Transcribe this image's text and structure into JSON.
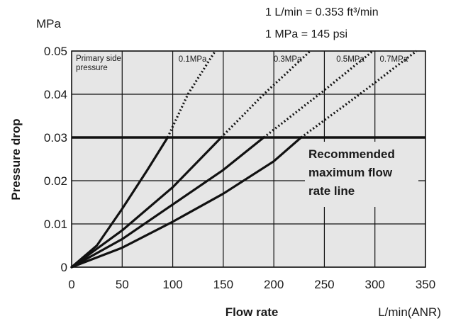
{
  "chart_data": {
    "type": "line",
    "xlabel": "Flow rate",
    "ylabel": "Pressure drop",
    "x_unit": "L/min(ANR)",
    "y_unit": "MPa",
    "xlim": [
      0,
      350
    ],
    "ylim": [
      0,
      0.05
    ],
    "x_ticks": [
      "0",
      "50",
      "100",
      "150",
      "200",
      "250",
      "300",
      "350"
    ],
    "y_ticks": [
      "0",
      "0.01",
      "0.02",
      "0.03",
      "0.04",
      "0.05"
    ],
    "grid": true,
    "legend_title": "Primary side pressure",
    "conversion_notes": [
      "1 L/min = 0.353 ft³/min",
      "1 MPa = 145 psi"
    ],
    "recommended_line": {
      "y": 0.03,
      "label_lines": [
        "Recommended",
        "maximum flow",
        "rate line"
      ]
    },
    "series": [
      {
        "name": "0.1MPa",
        "solid": [
          [
            0,
            0
          ],
          [
            25,
            0.005
          ],
          [
            50,
            0.0135
          ],
          [
            75,
            0.0225
          ],
          [
            95,
            0.03
          ]
        ],
        "dotted": [
          [
            95,
            0.03
          ],
          [
            115,
            0.04
          ],
          [
            142,
            0.05
          ]
        ]
      },
      {
        "name": "0.3MPa",
        "solid": [
          [
            0,
            0
          ],
          [
            50,
            0.0085
          ],
          [
            100,
            0.0185
          ],
          [
            148,
            0.03
          ]
        ],
        "dotted": [
          [
            148,
            0.03
          ],
          [
            190,
            0.04
          ],
          [
            236,
            0.05
          ]
        ]
      },
      {
        "name": "0.5MPa",
        "solid": [
          [
            0,
            0
          ],
          [
            50,
            0.0065
          ],
          [
            100,
            0.0145
          ],
          [
            150,
            0.0225
          ],
          [
            190,
            0.03
          ]
        ],
        "dotted": [
          [
            190,
            0.03
          ],
          [
            245,
            0.04
          ],
          [
            298,
            0.05
          ]
        ]
      },
      {
        "name": "0.7MPa",
        "solid": [
          [
            0,
            0
          ],
          [
            50,
            0.0045
          ],
          [
            100,
            0.0105
          ],
          [
            150,
            0.017
          ],
          [
            200,
            0.0245
          ],
          [
            227,
            0.03
          ]
        ],
        "dotted": [
          [
            227,
            0.03
          ],
          [
            285,
            0.04
          ],
          [
            341,
            0.05
          ]
        ]
      }
    ]
  }
}
